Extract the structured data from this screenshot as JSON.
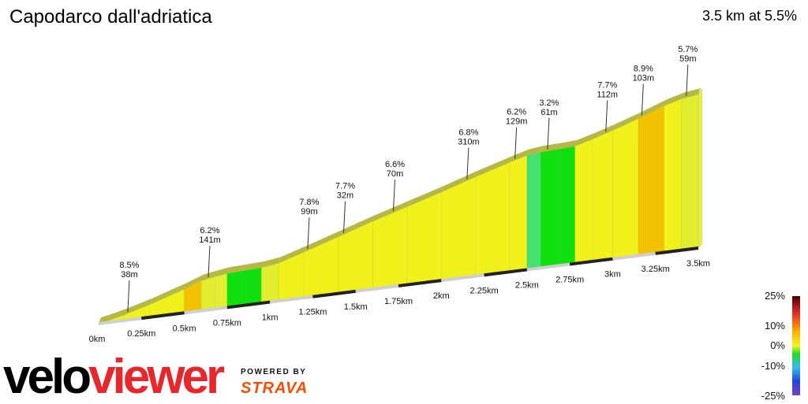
{
  "page": {
    "title": "Capodarco dall'adriatica",
    "stats": "3.5 km at 5.5%"
  },
  "chart_data": {
    "type": "area",
    "title": "Capodarco dall'adriatica",
    "subtitle": "3.5 km at 5.5%",
    "distance_km": 3.5,
    "avg_gradient_pct": 5.5,
    "x_ticks": [
      "0km",
      "0.25km",
      "0.5km",
      "0.75km",
      "1km",
      "1.25km",
      "1.5km",
      "1.75km",
      "2km",
      "2.25km",
      "2.5km",
      "2.75km",
      "3km",
      "3.25km",
      "3.5km"
    ],
    "segments": [
      {
        "length_m": 38,
        "gradient_pct": 8.5
      },
      {
        "length_m": 141,
        "gradient_pct": 6.2
      },
      {
        "length_m": 99,
        "gradient_pct": 7.8
      },
      {
        "length_m": 32,
        "gradient_pct": 7.7
      },
      {
        "length_m": 70,
        "gradient_pct": 6.6
      },
      {
        "length_m": 310,
        "gradient_pct": 6.8
      },
      {
        "length_m": 129,
        "gradient_pct": 6.2
      },
      {
        "length_m": 61,
        "gradient_pct": 3.2
      },
      {
        "length_m": 112,
        "gradient_pct": 7.7
      },
      {
        "length_m": 103,
        "gradient_pct": 8.9
      },
      {
        "length_m": 59,
        "gradient_pct": 5.7
      }
    ],
    "annotations": [
      {
        "pct": "8.5%",
        "len": "38m",
        "km": 0.17
      },
      {
        "pct": "6.2%",
        "len": "141m",
        "km": 0.64
      },
      {
        "pct": "7.8%",
        "len": "99m",
        "km": 1.22
      },
      {
        "pct": "7.7%",
        "len": "32m",
        "km": 1.43
      },
      {
        "pct": "6.6%",
        "len": "70m",
        "km": 1.72
      },
      {
        "pct": "6.8%",
        "len": "310m",
        "km": 2.15
      },
      {
        "pct": "6.2%",
        "len": "129m",
        "km": 2.43
      },
      {
        "pct": "3.2%",
        "len": "61m",
        "km": 2.62
      },
      {
        "pct": "7.7%",
        "len": "112m",
        "km": 2.96
      },
      {
        "pct": "8.9%",
        "len": "103m",
        "km": 3.17
      },
      {
        "pct": "5.7%",
        "len": "59m",
        "km": 3.43
      }
    ],
    "profile_km": [
      0,
      0.05,
      0.15,
      0.3,
      0.5,
      0.6,
      0.68,
      0.75,
      0.85,
      0.95,
      1.05,
      1.2,
      1.4,
      1.6,
      1.8,
      2.0,
      2.2,
      2.4,
      2.5,
      2.58,
      2.7,
      2.78,
      2.88,
      3.0,
      3.15,
      3.3,
      3.4,
      3.5
    ],
    "profile_elev_m": [
      0,
      2,
      7,
      16,
      30,
      38,
      41,
      43,
      44,
      45,
      48,
      58,
      72,
      86,
      99,
      112,
      126,
      139,
      145,
      147,
      148,
      149,
      155,
      163,
      174,
      186,
      192,
      195
    ],
    "gradient_scale": {
      "labels": [
        "25%",
        "10%",
        "0%",
        "-10%",
        "-25%"
      ],
      "colors": [
        "#4a0000",
        "#e8302a",
        "#ffb000",
        "#f5f520",
        "#22dd22",
        "#33bbee",
        "#2244dd",
        "#7a3fc0"
      ]
    },
    "colors": {
      "yellow": "#f1f11c",
      "lime": "#e2ee30",
      "orange": "#f2c200",
      "green": "#10e010",
      "light_green": "#44e070",
      "top_edge": "#a8ab25",
      "road_dark": "#222222"
    }
  },
  "brand": {
    "velo": "velo",
    "viewer": "viewer",
    "powered_by": "POWERED BY",
    "strava": "STRAVA"
  }
}
